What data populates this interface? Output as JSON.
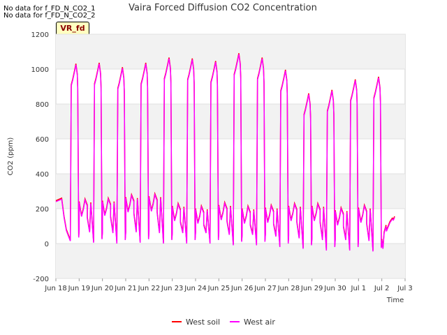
{
  "notes": [
    "No data for f_FD_N_CO2_1",
    "No data for f_FD_N_CO2_2"
  ],
  "badge": "VR_fd",
  "chart_data": {
    "type": "line",
    "title": "Vaira Forced Diffusion CO2 Concentration",
    "xlabel": "Time",
    "ylabel": "CO2 (ppm)",
    "xlim": [
      0,
      15
    ],
    "ylim": [
      -200,
      1200
    ],
    "yticks": [
      -200,
      0,
      200,
      400,
      600,
      800,
      1000,
      1200
    ],
    "xticks": [
      {
        "v": 0,
        "label": "Jun 18"
      },
      {
        "v": 1,
        "label": "Jun 19"
      },
      {
        "v": 2,
        "label": "Jun 20"
      },
      {
        "v": 3,
        "label": "Jun 21"
      },
      {
        "v": 4,
        "label": "Jun 22"
      },
      {
        "v": 5,
        "label": "Jun 23"
      },
      {
        "v": 6,
        "label": "Jun 24"
      },
      {
        "v": 7,
        "label": "Jun 25"
      },
      {
        "v": 8,
        "label": "Jun 26"
      },
      {
        "v": 9,
        "label": "Jun 27"
      },
      {
        "v": 10,
        "label": "Jun 28"
      },
      {
        "v": 11,
        "label": "Jun 29"
      },
      {
        "v": 12,
        "label": "Jun 30"
      },
      {
        "v": 13,
        "label": "Jul 1"
      },
      {
        "v": 14,
        "label": "Jul 2"
      },
      {
        "v": 15,
        "label": "Jul 3"
      }
    ],
    "days": [
      {
        "day": 0,
        "base": 250,
        "peak": 1025,
        "low": 15
      },
      {
        "day": 1,
        "base": 245,
        "peak": 1030,
        "low": 5
      },
      {
        "day": 2,
        "base": 250,
        "peak": 1005,
        "low": 0
      },
      {
        "day": 3,
        "base": 270,
        "peak": 1030,
        "low": 5
      },
      {
        "day": 4,
        "base": 275,
        "peak": 1060,
        "low": 0
      },
      {
        "day": 5,
        "base": 220,
        "peak": 1055,
        "low": 0
      },
      {
        "day": 6,
        "base": 205,
        "peak": 1040,
        "low": 0
      },
      {
        "day": 7,
        "base": 225,
        "peak": 1085,
        "low": -10
      },
      {
        "day": 8,
        "base": 205,
        "peak": 1060,
        "low": -10
      },
      {
        "day": 9,
        "base": 210,
        "peak": 990,
        "low": -20
      },
      {
        "day": 10,
        "base": 220,
        "peak": 855,
        "low": -30
      },
      {
        "day": 11,
        "base": 220,
        "peak": 875,
        "low": -40
      },
      {
        "day": 12,
        "base": 195,
        "peak": 935,
        "low": -40
      },
      {
        "day": 13,
        "base": 210,
        "peak": 950,
        "low": -45
      },
      {
        "day": 14,
        "base": 150,
        "peak": 150,
        "low": 150
      }
    ],
    "series": [
      {
        "name": "West soil",
        "color": "#ff0000"
      },
      {
        "name": "West air",
        "color": "#ff00ff"
      }
    ]
  }
}
